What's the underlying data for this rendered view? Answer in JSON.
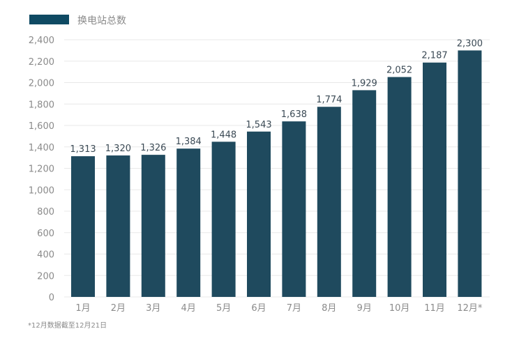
{
  "chart_data": {
    "type": "bar",
    "title": "",
    "legend": {
      "label": "换电站总数",
      "placement": "top-left"
    },
    "categories": [
      "1月",
      "2月",
      "3月",
      "4月",
      "5月",
      "6月",
      "7月",
      "8月",
      "9月",
      "10月",
      "11月",
      "12月*"
    ],
    "series": [
      {
        "name": "换电站总数",
        "values": [
          1313,
          1320,
          1326,
          1384,
          1448,
          1543,
          1638,
          1774,
          1929,
          2052,
          2187,
          2300
        ]
      }
    ],
    "data_labels": [
      "1,313",
      "1,320",
      "1,326",
      "1,384",
      "1,448",
      "1,543",
      "1,638",
      "1,774",
      "1,929",
      "2,052",
      "2,187",
      "2,300"
    ],
    "yticks": [
      "0",
      "200",
      "400",
      "600",
      "800",
      "1,000",
      "1,200",
      "1,400",
      "1,600",
      "1,800",
      "2,000",
      "2,200",
      "2,400"
    ],
    "ylim": [
      0,
      2400
    ],
    "grid": true,
    "xlabel": "",
    "ylabel": "",
    "footnote": "*12月数据截至12月21日",
    "colors": {
      "bar": "#1f4a5e",
      "legend": "#0f4a63",
      "grid": "#e8e8e8"
    }
  }
}
